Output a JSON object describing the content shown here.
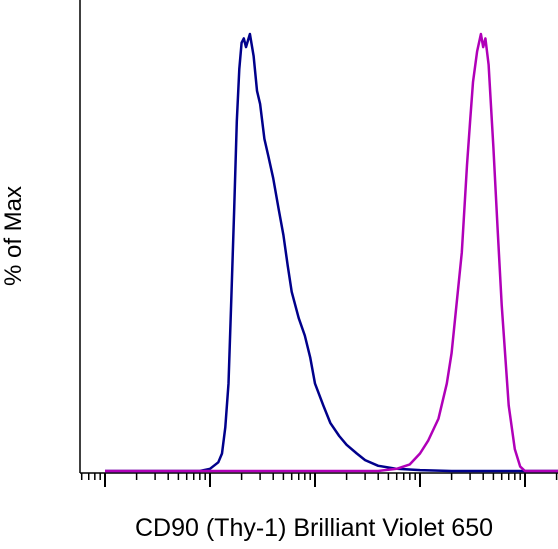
{
  "chart_data": {
    "type": "line",
    "title": "",
    "xlabel": "CD90 (Thy-1) Brilliant Violet 650",
    "ylabel": "% of Max",
    "x_scale": "log",
    "xlim": [
      1,
      100000
    ],
    "ylim": [
      0,
      100
    ],
    "grid": false,
    "legend": "none",
    "series": [
      {
        "color": "#00008b",
        "x": [
          1,
          4,
          8,
          10,
          12,
          13,
          14,
          15,
          16,
          17,
          18,
          19,
          20,
          21,
          22,
          24,
          26,
          28,
          30,
          33,
          36,
          40,
          45,
          50,
          55,
          60,
          70,
          80,
          90,
          100,
          120,
          140,
          170,
          200,
          250,
          300,
          400,
          600,
          1000,
          2000,
          5000,
          100000
        ],
        "values": [
          0,
          0,
          0,
          0.5,
          2,
          4,
          10,
          20,
          40,
          60,
          80,
          92,
          98,
          99,
          97,
          100,
          95,
          87,
          84,
          76,
          72,
          67,
          60,
          54,
          47,
          41,
          35,
          31,
          26,
          20,
          15,
          11,
          8,
          6,
          4,
          2.5,
          1.2,
          0.5,
          0.2,
          0,
          0,
          0
        ]
      },
      {
        "color": "#b000b8",
        "x": [
          1,
          400,
          600,
          800,
          1000,
          1200,
          1500,
          1800,
          2000,
          2500,
          2800,
          3000,
          3200,
          3500,
          3800,
          4000,
          4200,
          4500,
          5000,
          5500,
          6000,
          7000,
          8000,
          9000,
          10000,
          100000
        ],
        "values": [
          0,
          0,
          0.5,
          1.5,
          4,
          7,
          12,
          20,
          27,
          50,
          70,
          80,
          89,
          96,
          100,
          97,
          99,
          93,
          74,
          55,
          38,
          15,
          5,
          1,
          0,
          0
        ]
      }
    ]
  }
}
